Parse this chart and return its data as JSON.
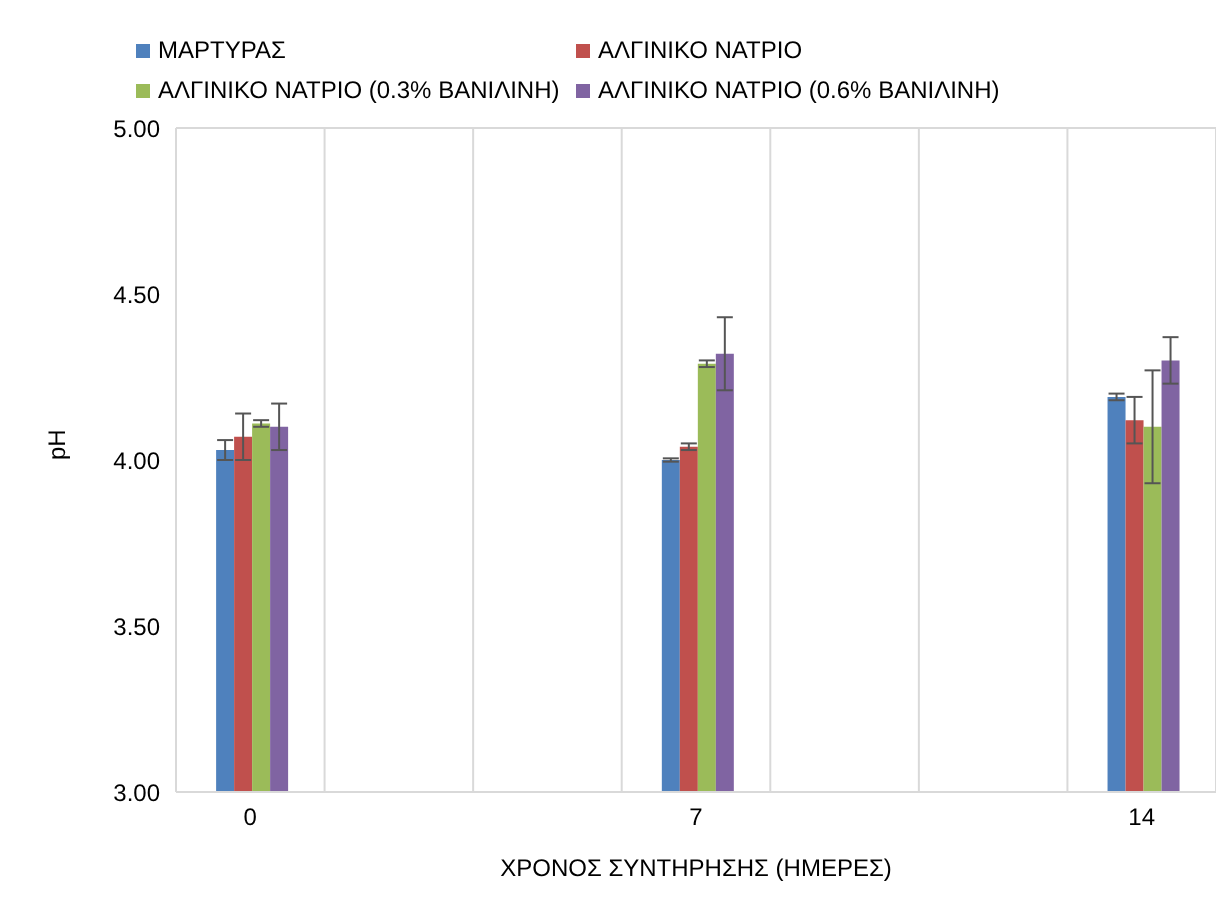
{
  "chart_data": {
    "type": "bar",
    "xlabel": "ΧΡΟΝΟΣ ΣΥΝΤΗΡΗΣΗΣ (ΗΜΕΡΕΣ)",
    "ylabel": "pH",
    "categories": [
      "0",
      null,
      null,
      "7",
      null,
      null,
      "14"
    ],
    "series": [
      {
        "name": "ΜΑΡΤΥΡΑΣ",
        "color": "#4f81bd",
        "values": [
          4.03,
          null,
          null,
          4.0,
          null,
          null,
          4.19
        ],
        "errors": [
          0.03,
          null,
          null,
          0.005,
          null,
          null,
          0.01
        ]
      },
      {
        "name": "ΑΛΓΙΝΙΚΟ ΝΑΤΡΙΟ",
        "color": "#c0504d",
        "values": [
          4.07,
          null,
          null,
          4.04,
          null,
          null,
          4.12
        ],
        "errors": [
          0.07,
          null,
          null,
          0.01,
          null,
          null,
          0.07
        ]
      },
      {
        "name": "ΑΛΓΙΝΙΚΟ ΝΑΤΡΙΟ (0.3% ΒΑΝΙΛΙΝΗ)",
        "color": "#9bbb59",
        "values": [
          4.11,
          null,
          null,
          4.29,
          null,
          null,
          4.1
        ],
        "errors": [
          0.01,
          null,
          null,
          0.01,
          null,
          null,
          0.17
        ]
      },
      {
        "name": "ΑΛΓΙΝΙΚΟ ΝΑΤΡΙΟ (0.6% ΒΑΝΙΛΙΝΗ)",
        "color": "#8064a2",
        "values": [
          4.1,
          null,
          null,
          4.32,
          null,
          null,
          4.3
        ],
        "errors": [
          0.07,
          null,
          null,
          0.11,
          null,
          null,
          0.07
        ]
      }
    ],
    "ylim": [
      3,
      5
    ],
    "yticks": [
      {
        "value": 3,
        "label": "3.00"
      },
      {
        "value": 3.5,
        "label": "3.50"
      },
      {
        "value": 4,
        "label": "4.00"
      },
      {
        "value": 4.5,
        "label": "4.50"
      },
      {
        "value": 5,
        "label": "5.00"
      }
    ],
    "grid": true,
    "legend": "top"
  }
}
